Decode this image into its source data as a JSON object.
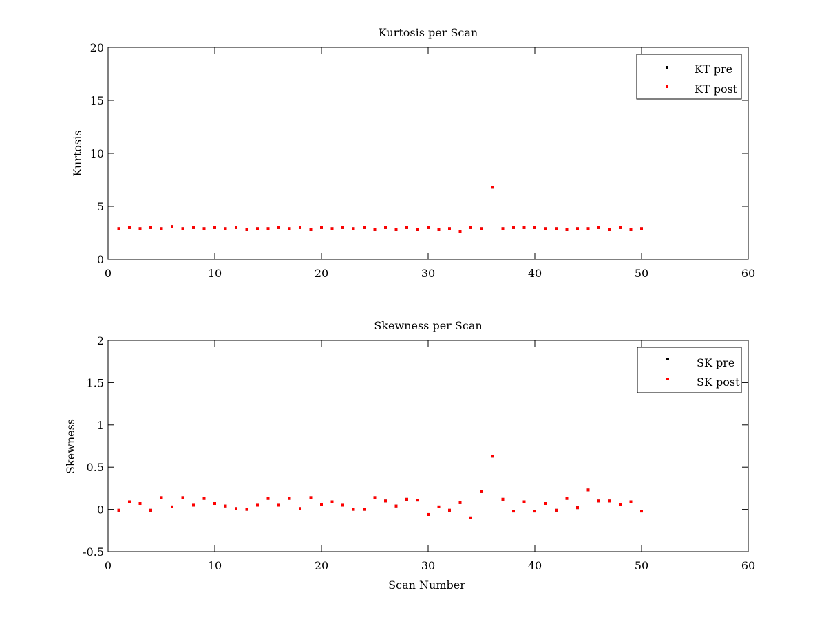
{
  "chart_data": [
    {
      "type": "scatter",
      "title": "Kurtosis per Scan",
      "xlabel": "",
      "ylabel": "Kurtosis",
      "xlim": [
        0,
        60
      ],
      "ylim": [
        0,
        20
      ],
      "xticks": [
        0,
        10,
        20,
        30,
        40,
        50,
        60
      ],
      "xtick_labels": [
        "0",
        "10",
        "20",
        "30",
        "40",
        "50",
        "60"
      ],
      "yticks": [
        0,
        5,
        10,
        15,
        20
      ],
      "ytick_labels": [
        "0",
        "5",
        "10",
        "15",
        "20"
      ],
      "grid": false,
      "legend_position": "top-right",
      "x": [
        1,
        2,
        3,
        4,
        5,
        6,
        7,
        8,
        9,
        10,
        11,
        12,
        13,
        14,
        15,
        16,
        17,
        18,
        19,
        20,
        21,
        22,
        23,
        24,
        25,
        26,
        27,
        28,
        29,
        30,
        31,
        32,
        33,
        34,
        35,
        36,
        37,
        38,
        39,
        40,
        41,
        42,
        43,
        44,
        45,
        46,
        47,
        48,
        49,
        50
      ],
      "series": [
        {
          "name": "KT pre",
          "color": "#000000",
          "values": [
            2.9,
            3.0,
            2.9,
            3.0,
            2.9,
            3.1,
            2.9,
            3.0,
            2.9,
            3.0,
            2.9,
            3.0,
            2.8,
            2.9,
            2.9,
            3.0,
            2.9,
            3.0,
            2.8,
            3.0,
            2.9,
            3.0,
            2.9,
            3.0,
            2.8,
            3.0,
            2.8,
            3.0,
            2.8,
            3.0,
            2.8,
            2.9,
            2.6,
            3.0,
            2.9,
            6.8,
            2.9,
            3.0,
            3.0,
            3.0,
            2.9,
            2.9,
            2.8,
            2.9,
            2.9,
            3.0,
            2.8,
            3.0,
            2.8,
            2.9
          ]
        },
        {
          "name": "KT post",
          "color": "#ff0000",
          "values": [
            2.9,
            3.0,
            2.9,
            3.0,
            2.9,
            3.1,
            2.9,
            3.0,
            2.9,
            3.0,
            2.9,
            3.0,
            2.8,
            2.9,
            2.9,
            3.0,
            2.9,
            3.0,
            2.8,
            3.0,
            2.9,
            3.0,
            2.9,
            3.0,
            2.8,
            3.0,
            2.8,
            3.0,
            2.8,
            3.0,
            2.8,
            2.9,
            2.6,
            3.0,
            2.9,
            6.8,
            2.9,
            3.0,
            3.0,
            3.0,
            2.9,
            2.9,
            2.8,
            2.9,
            2.9,
            3.0,
            2.8,
            3.0,
            2.8,
            2.9
          ]
        }
      ]
    },
    {
      "type": "scatter",
      "title": "Skewness per Scan",
      "xlabel": "Scan Number",
      "ylabel": "Skewness",
      "xlim": [
        0,
        60
      ],
      "ylim": [
        -0.5,
        2
      ],
      "xticks": [
        0,
        10,
        20,
        30,
        40,
        50,
        60
      ],
      "xtick_labels": [
        "0",
        "10",
        "20",
        "30",
        "40",
        "50",
        "60"
      ],
      "yticks": [
        -0.5,
        0,
        0.5,
        1,
        1.5,
        2
      ],
      "ytick_labels": [
        "-0.5",
        "0",
        "0.5",
        "1",
        "1.5",
        "2"
      ],
      "grid": false,
      "legend_position": "top-right",
      "x": [
        1,
        2,
        3,
        4,
        5,
        6,
        7,
        8,
        9,
        10,
        11,
        12,
        13,
        14,
        15,
        16,
        17,
        18,
        19,
        20,
        21,
        22,
        23,
        24,
        25,
        26,
        27,
        28,
        29,
        30,
        31,
        32,
        33,
        34,
        35,
        36,
        37,
        38,
        39,
        40,
        41,
        42,
        43,
        44,
        45,
        46,
        47,
        48,
        49,
        50
      ],
      "series": [
        {
          "name": "SK pre",
          "color": "#000000",
          "values": [
            -0.01,
            0.09,
            0.07,
            -0.01,
            0.14,
            0.03,
            0.14,
            0.05,
            0.13,
            0.07,
            0.04,
            0.01,
            0.0,
            0.05,
            0.13,
            0.05,
            0.13,
            0.01,
            0.14,
            0.06,
            0.09,
            0.05,
            0.0,
            0.0,
            0.14,
            0.1,
            0.04,
            0.12,
            0.11,
            -0.06,
            0.03,
            -0.01,
            0.08,
            -0.1,
            0.21,
            0.63,
            0.12,
            -0.02,
            0.09,
            -0.02,
            0.07,
            -0.01,
            0.13,
            0.02,
            0.23,
            0.1,
            0.1,
            0.06,
            0.09,
            -0.02
          ]
        },
        {
          "name": "SK post",
          "color": "#ff0000",
          "values": [
            -0.01,
            0.09,
            0.07,
            -0.01,
            0.14,
            0.03,
            0.14,
            0.05,
            0.13,
            0.07,
            0.04,
            0.01,
            0.0,
            0.05,
            0.13,
            0.05,
            0.13,
            0.01,
            0.14,
            0.06,
            0.09,
            0.05,
            0.0,
            0.0,
            0.14,
            0.1,
            0.04,
            0.12,
            0.11,
            -0.06,
            0.03,
            -0.01,
            0.08,
            -0.1,
            0.21,
            0.63,
            0.12,
            -0.02,
            0.09,
            -0.02,
            0.07,
            -0.01,
            0.13,
            0.02,
            0.23,
            0.1,
            0.1,
            0.06,
            0.09,
            -0.02
          ]
        }
      ]
    }
  ]
}
